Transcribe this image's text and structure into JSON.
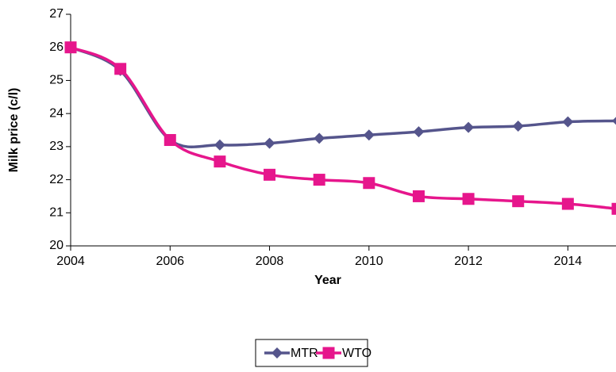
{
  "chart_data": {
    "type": "line",
    "y_label": "Milk price (c/l)",
    "x_label": "Year",
    "x": [
      2004,
      2005,
      2006,
      2007,
      2008,
      2009,
      2010,
      2011,
      2012,
      2013,
      2014,
      2015
    ],
    "series": [
      {
        "name": "MTR",
        "color": "#55558c",
        "marker": "diamond",
        "values": [
          26.0,
          25.3,
          23.2,
          23.05,
          23.1,
          23.25,
          23.35,
          23.45,
          23.58,
          23.62,
          23.75,
          23.78
        ]
      },
      {
        "name": "WTO",
        "color": "#e6168c",
        "marker": "square",
        "values": [
          26.0,
          25.35,
          23.2,
          22.55,
          22.15,
          22.0,
          21.9,
          21.5,
          21.42,
          21.35,
          21.27,
          21.12
        ]
      }
    ],
    "xlim": [
      2004,
      2015
    ],
    "xticks": [
      2004,
      2006,
      2008,
      2010,
      2012,
      2014
    ],
    "ylim": [
      20,
      27
    ],
    "yticks": [
      20,
      21,
      22,
      23,
      24,
      25,
      26,
      27
    ],
    "smooth": true,
    "legend": "bottom"
  }
}
